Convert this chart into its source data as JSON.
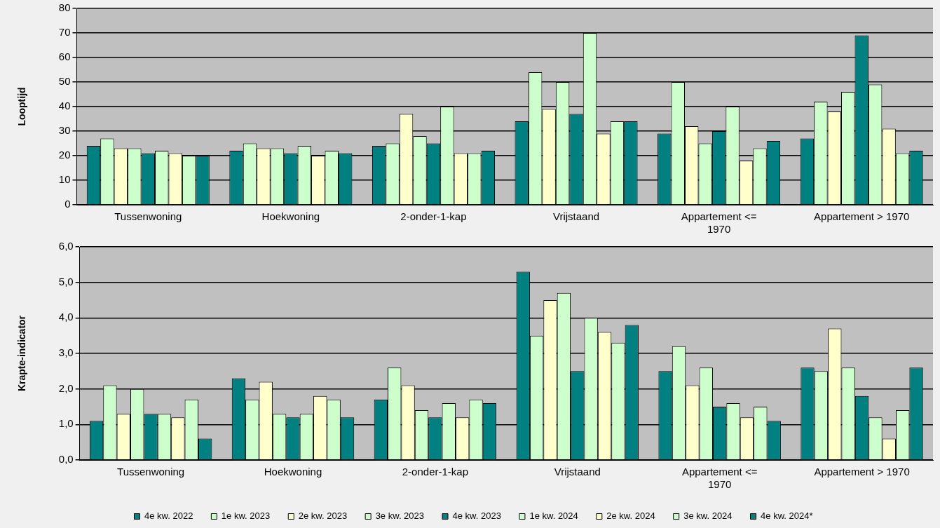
{
  "chart_data": [
    {
      "type": "bar",
      "ylabel": "Looptijd",
      "categories": [
        "Tussenwoning",
        "Hoekwoning",
        "2-onder-1-kap",
        "Vrijstaand",
        "Appartement <= 1970",
        "Appartement > 1970"
      ],
      "ylim": [
        0,
        80
      ],
      "yticks": [
        0,
        10,
        20,
        30,
        40,
        50,
        60,
        70,
        80
      ],
      "grid": "y",
      "legend": false,
      "series": [
        {
          "color": "#008080",
          "values": [
            24,
            22,
            24,
            34,
            29,
            27
          ]
        },
        {
          "color": "#ccffcc",
          "values": [
            27,
            25,
            25,
            54,
            50,
            42
          ]
        },
        {
          "color": "#ffffcc",
          "values": [
            23,
            23,
            37,
            39,
            32,
            38
          ]
        },
        {
          "color": "#ccffcc",
          "values": [
            23,
            23,
            28,
            50,
            25,
            46
          ]
        },
        {
          "color": "#008080",
          "values": [
            21,
            21,
            25,
            37,
            30,
            69
          ]
        },
        {
          "color": "#ccffcc",
          "values": [
            22,
            24,
            40,
            70,
            40,
            49
          ]
        },
        {
          "color": "#ffffcc",
          "values": [
            21,
            20,
            21,
            29,
            18,
            31
          ]
        },
        {
          "color": "#ccffcc",
          "values": [
            20,
            22,
            21,
            34,
            23,
            21
          ]
        },
        {
          "color": "#008080",
          "values": [
            20,
            21,
            22,
            34,
            26,
            22
          ]
        }
      ]
    },
    {
      "type": "bar",
      "ylabel": "Krapte-indicator",
      "categories": [
        "Tussenwoning",
        "Hoekwoning",
        "2-onder-1-kap",
        "Vrijstaand",
        "Appartement <= 1970",
        "Appartement > 1970"
      ],
      "ylim": [
        0,
        6
      ],
      "yticks": [
        {
          "value": 0,
          "label": "0,0"
        },
        {
          "value": 1,
          "label": "1,0"
        },
        {
          "value": 2,
          "label": "2,0"
        },
        {
          "value": 3,
          "label": "3,0"
        },
        {
          "value": 4,
          "label": "4,0"
        },
        {
          "value": 5,
          "label": "5,0"
        },
        {
          "value": 6,
          "label": "6,0"
        }
      ],
      "grid": "y",
      "legend": "bottom",
      "series": [
        {
          "name": "4e kw. 2022",
          "color": "#008080",
          "values": [
            1.1,
            2.3,
            1.7,
            5.3,
            2.5,
            2.6
          ]
        },
        {
          "name": "1e kw. 2023",
          "color": "#ccffcc",
          "values": [
            2.1,
            1.7,
            2.6,
            3.5,
            3.2,
            2.5
          ]
        },
        {
          "name": "2e kw. 2023",
          "color": "#ffffcc",
          "values": [
            1.3,
            2.2,
            2.1,
            4.5,
            2.1,
            3.7
          ]
        },
        {
          "name": "3e kw. 2023",
          "color": "#ccffcc",
          "values": [
            2.0,
            1.3,
            1.4,
            4.7,
            2.6,
            2.6
          ]
        },
        {
          "name": "4e kw. 2023",
          "color": "#008080",
          "values": [
            1.3,
            1.2,
            1.2,
            2.5,
            1.5,
            1.8
          ]
        },
        {
          "name": "1e kw. 2024",
          "color": "#ccffcc",
          "values": [
            1.3,
            1.3,
            1.6,
            4.0,
            1.6,
            1.2
          ]
        },
        {
          "name": "2e kw. 2024",
          "color": "#ffffcc",
          "values": [
            1.2,
            1.8,
            1.2,
            3.6,
            1.2,
            0.6
          ]
        },
        {
          "name": "3e kw. 2024",
          "color": "#ccffcc",
          "values": [
            1.7,
            1.7,
            1.7,
            3.3,
            1.5,
            1.4
          ]
        },
        {
          "name": "4e kw. 2024*",
          "color": "#008080",
          "values": [
            0.6,
            1.2,
            1.6,
            3.8,
            1.1,
            2.6
          ]
        }
      ]
    }
  ]
}
